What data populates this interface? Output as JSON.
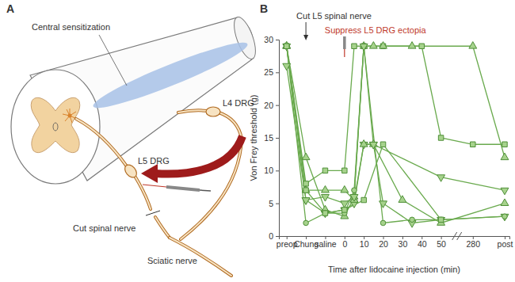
{
  "diagram": {
    "panel_label": "A",
    "labels": [
      "Central sensitization",
      "L4 DRG",
      "L5 DRG",
      "Cut spinal nerve",
      "Sciatic nerve"
    ]
  },
  "chart_data": {
    "type": "line",
    "title": "B",
    "x_label": "Time after lidocaine injection (min)",
    "y_label": "Von Frey threshold (g)",
    "color": "#6aaa4e",
    "xlim": [
      -34,
      326
    ],
    "ylim": [
      0,
      30
    ],
    "xticks": [
      {
        "value": -30,
        "label": "preop"
      },
      {
        "value": -20,
        "label": "Chung"
      },
      {
        "value": -10,
        "label": "saline"
      },
      0,
      10,
      20,
      30,
      40,
      50,
      280,
      {
        "value": 320,
        "label": "post"
      }
    ],
    "yticks": [
      0,
      5,
      10,
      15,
      20,
      25,
      30
    ],
    "annotations": [
      {
        "text": "Cut L5 spinal nerve",
        "x": -20
      },
      {
        "text": "Suppress L5 DRG ectopia",
        "x": 0,
        "color": "#c0392b"
      }
    ],
    "series": [
      {
        "marker": "square",
        "x": [
          -30,
          -20,
          -10,
          0,
          5,
          10,
          20,
          40,
          50,
          280,
          320
        ],
        "values": [
          29,
          8,
          10,
          10,
          29,
          29,
          29,
          29,
          15,
          14,
          14
        ]
      },
      {
        "marker": "triangle-up",
        "x": [
          -30,
          -20,
          -10,
          0,
          5,
          10,
          15,
          20,
          35,
          280,
          320
        ],
        "values": [
          29,
          12,
          4,
          3,
          6,
          29,
          29,
          29,
          29,
          29,
          12
        ]
      },
      {
        "marker": "triangle-down",
        "x": [
          -30,
          -20,
          -10,
          0,
          5,
          10,
          15,
          20,
          35,
          50,
          320
        ],
        "values": [
          26,
          5.5,
          3.5,
          4,
          5,
          14,
          14,
          5,
          2,
          2.5,
          3
        ]
      },
      {
        "marker": "circle",
        "x": [
          -30,
          -20,
          -10,
          0,
          5,
          10,
          20,
          35,
          50,
          320
        ],
        "values": [
          29,
          2,
          3.5,
          3.5,
          7,
          29,
          2,
          2.5,
          2.5,
          3
        ]
      },
      {
        "marker": "triangle-up",
        "x": [
          -30,
          -20,
          -10,
          0,
          5,
          10,
          15,
          30,
          50,
          320
        ],
        "values": [
          29,
          7,
          7,
          7,
          5.5,
          14,
          14,
          5.5,
          2,
          5
        ]
      },
      {
        "marker": "triangle-down",
        "x": [
          -30,
          -20,
          -10,
          0,
          5,
          10,
          15,
          50,
          320
        ],
        "values": [
          29,
          5.5,
          6,
          5,
          6,
          29,
          14,
          9,
          7
        ]
      },
      {
        "marker": "square",
        "x": [
          -30,
          -20,
          -10,
          0,
          10,
          20,
          50
        ],
        "values": [
          29,
          7,
          3.5,
          4,
          5.5,
          14,
          2.5
        ]
      }
    ]
  }
}
